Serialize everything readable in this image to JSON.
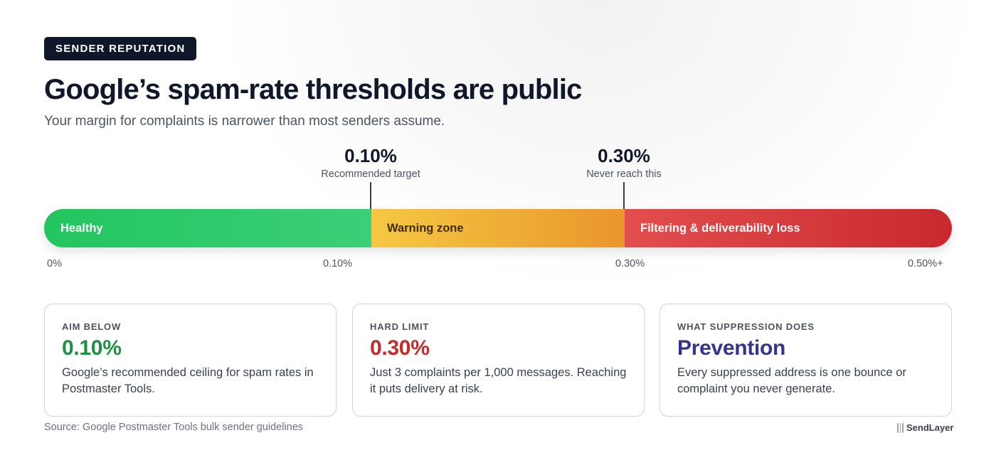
{
  "badge": "SENDER REPUTATION",
  "title": "Google’s spam-rate thresholds are public",
  "subtitle": "Your margin for complaints is narrower than most senders assume.",
  "markers": [
    {
      "value": "0.10%",
      "label": "Recommended target"
    },
    {
      "value": "0.30%",
      "label": "Never reach this"
    }
  ],
  "bar": {
    "segments": [
      {
        "label": "Healthy",
        "color": "#22c55e"
      },
      {
        "label": "Warning zone",
        "color": "#f0b43a"
      },
      {
        "label": "Filtering & deliverability loss",
        "color": "#d93c3c"
      }
    ]
  },
  "axis": [
    "0%",
    "0.10%",
    "0.30%",
    "0.50%+"
  ],
  "cards": [
    {
      "kicker": "AIM BELOW",
      "value": "0.10%",
      "color": "#1f8f45",
      "desc": "Google’s recommended ceiling for spam rates in Postmaster Tools."
    },
    {
      "kicker": "HARD LIMIT",
      "value": "0.30%",
      "color": "#c42b2b",
      "desc": "Just 3 complaints per 1,000 messages. Reaching it puts delivery at risk."
    },
    {
      "kicker": "WHAT SUPPRESSION DOES",
      "value": "Prevention",
      "color": "#33348e",
      "desc": "Every suppressed address is one bounce or complaint you never generate."
    }
  ],
  "source": "Source: Google Postmaster Tools bulk sender guidelines",
  "brand": {
    "name": "SendLayer",
    "icon": "sendlayer-logo-icon"
  }
}
